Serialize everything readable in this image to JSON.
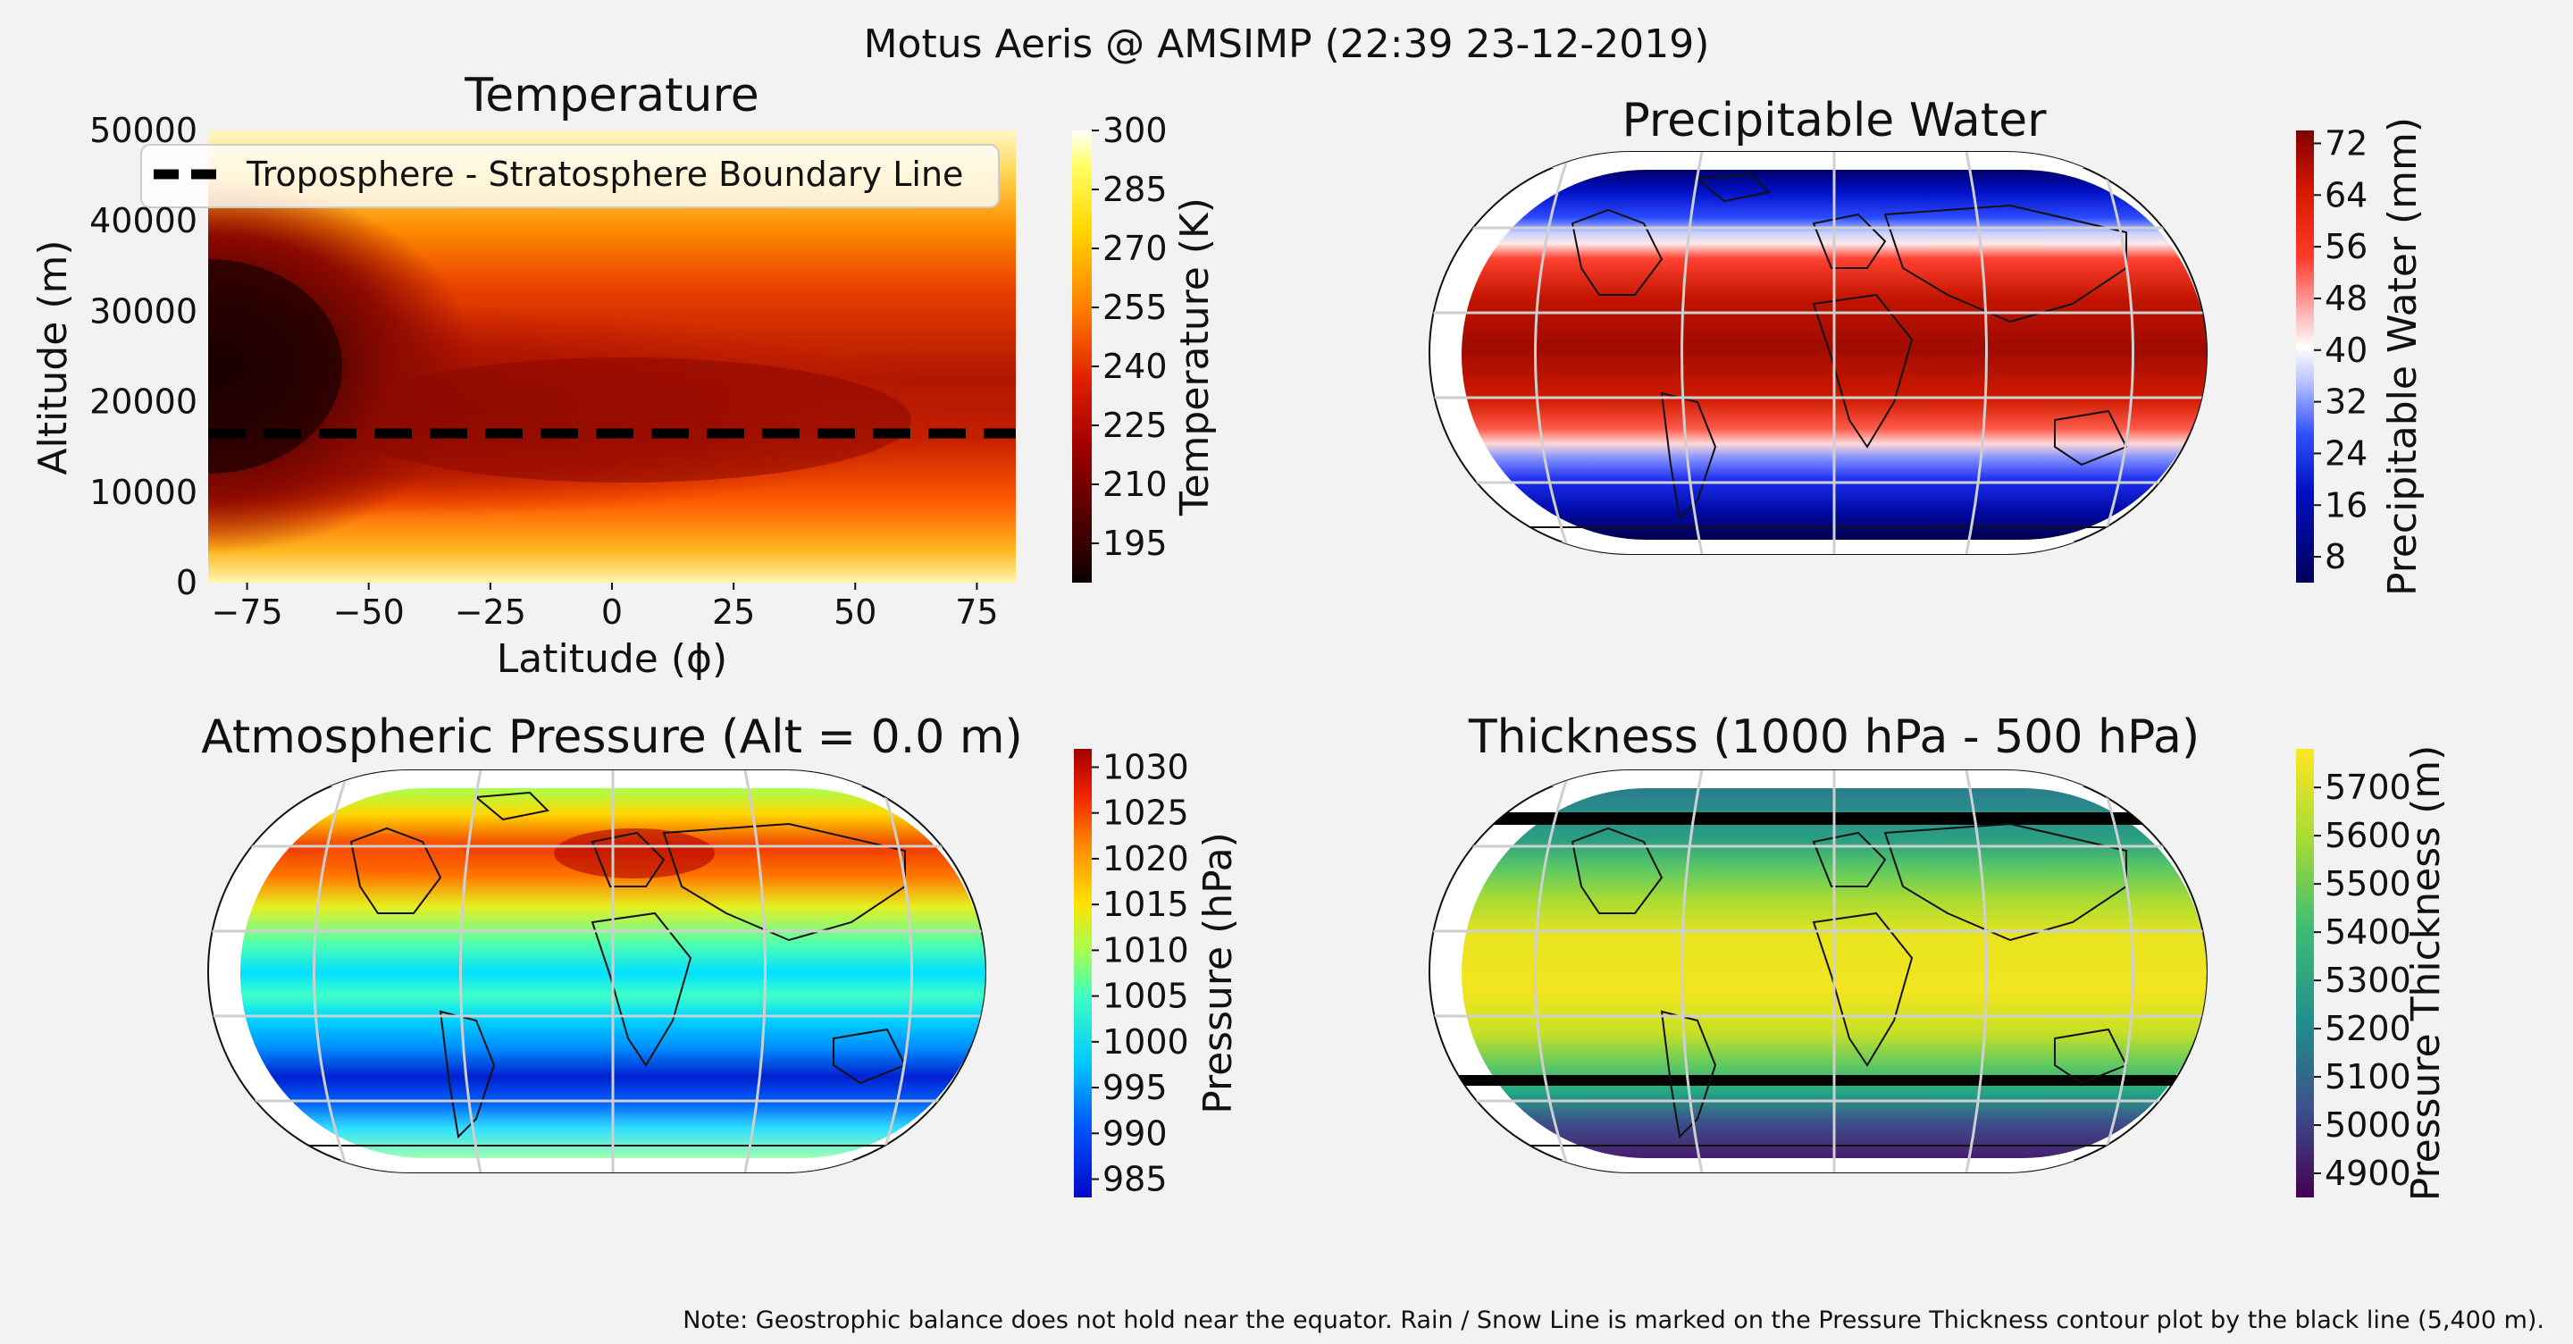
{
  "figure": {
    "suptitle": "Motus Aeris @ AMSIMP (22:39 23-12-2019)",
    "note": "Note: Geostrophic balance does not hold near the equator. Rain / Snow Line is marked on the Pressure Thickness contour plot by the black line (5,400 m)."
  },
  "chart_data": [
    {
      "type": "heatmap",
      "title": "Temperature",
      "xlabel": "Latitude (ϕ)",
      "ylabel": "Altitude (m)",
      "xlim": [
        -83,
        83
      ],
      "ylim": [
        0,
        50000
      ],
      "xticks": [
        -75,
        -50,
        -25,
        0,
        25,
        50,
        75
      ],
      "xtick_labels": [
        "−75",
        "−50",
        "−25",
        "0",
        "25",
        "50",
        "75"
      ],
      "yticks": [
        0,
        10000,
        20000,
        30000,
        40000,
        50000
      ],
      "ytick_labels": [
        "0",
        "10000",
        "20000",
        "30000",
        "40000",
        "50000"
      ],
      "boundary_line": {
        "label": "Troposphere - Stratosphere Boundary Line",
        "altitude": 16500
      },
      "legend_position": "upper-left",
      "colorbar": {
        "label": "Temperature (K)",
        "cmap": "hot",
        "range": [
          185,
          300
        ],
        "ticks": [
          195,
          210,
          225,
          240,
          255,
          270,
          285,
          300
        ]
      }
    },
    {
      "type": "heatmap",
      "title": "Precipitable Water",
      "projection": "Robinson",
      "colorbar": {
        "label": "Precipitable Water (mm)",
        "cmap": "seismic",
        "range": [
          4,
          74
        ],
        "ticks": [
          8,
          16,
          24,
          32,
          40,
          48,
          56,
          64,
          72
        ]
      }
    },
    {
      "type": "heatmap",
      "title": "Atmospheric Pressure (Alt = 0.0 m)",
      "projection": "Robinson",
      "colorbar": {
        "label": "Pressure (hPa)",
        "cmap": "jet",
        "range": [
          983,
          1032
        ],
        "ticks": [
          985,
          990,
          995,
          1000,
          1005,
          1010,
          1015,
          1020,
          1025,
          1030
        ]
      }
    },
    {
      "type": "heatmap",
      "title": "Thickness (1000 hPa - 500 hPa)",
      "projection": "Robinson",
      "rain_snow_line_m": 5400,
      "colorbar": {
        "label": "Pressure Thickness (m)",
        "cmap": "viridis",
        "range": [
          4850,
          5780
        ],
        "ticks": [
          4900,
          5000,
          5100,
          5200,
          5300,
          5400,
          5500,
          5600,
          5700
        ]
      }
    }
  ]
}
